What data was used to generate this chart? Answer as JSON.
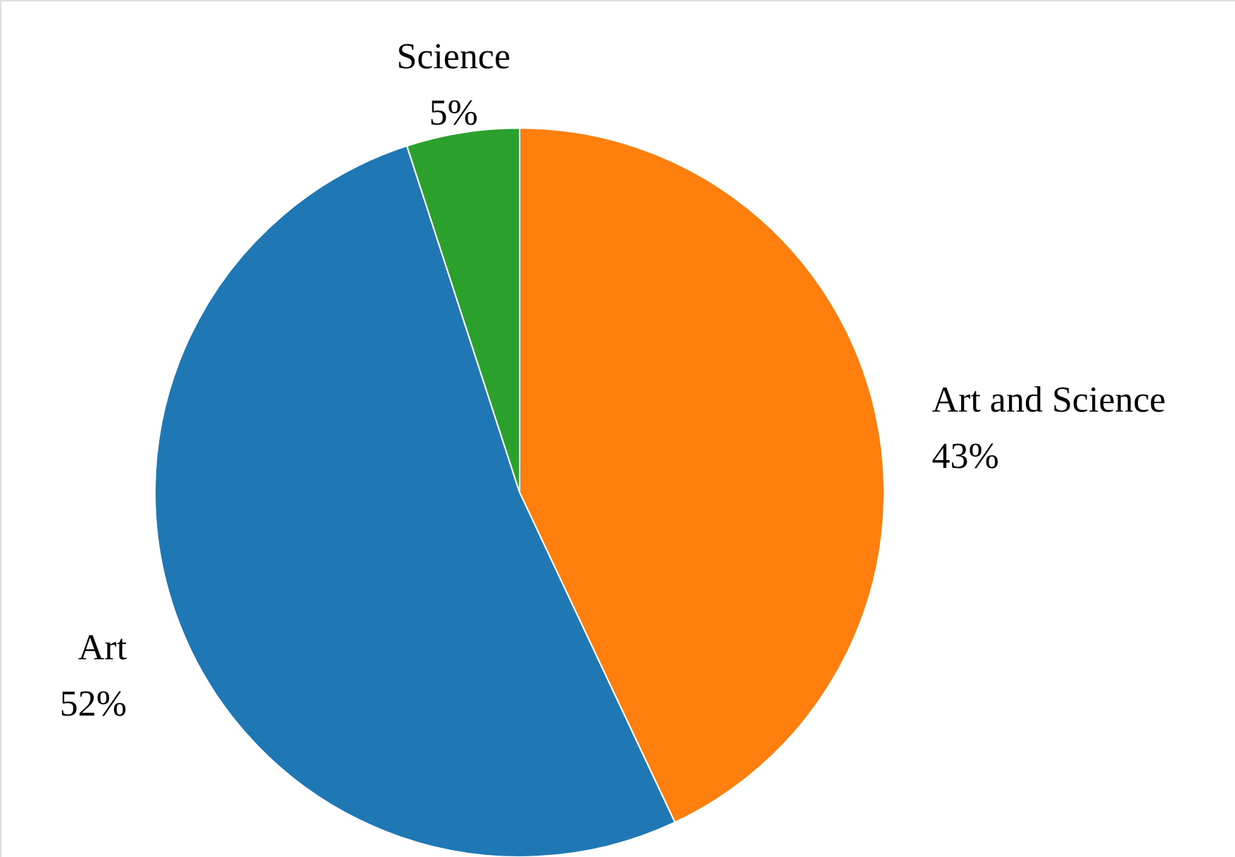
{
  "chart_data": {
    "type": "pie",
    "categories": [
      "Art and Science",
      "Art",
      "Science"
    ],
    "values": [
      43,
      52,
      5
    ],
    "colors": [
      "#ff7f0e",
      "#1f77b4",
      "#2ca02c"
    ],
    "value_labels": [
      "43%",
      "52%",
      "5%"
    ]
  }
}
